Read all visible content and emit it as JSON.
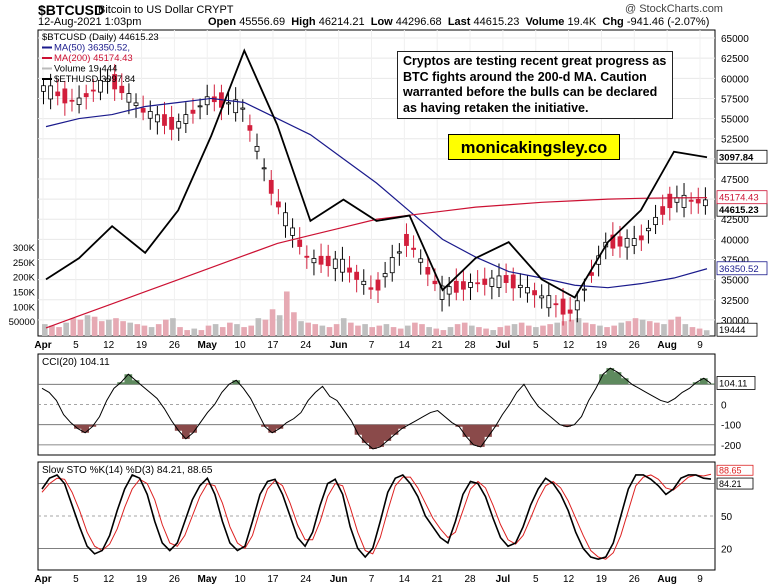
{
  "header": {
    "symbol": "$BTCUSD",
    "description": "Bitcoin to US Dollar  CRYPT",
    "copyright": "@ StockCharts.com",
    "date": "12-Aug-2021 1:03pm",
    "open_label": "Open",
    "open": "45556.69",
    "high_label": "High",
    "high": "46214.21",
    "low_label": "Low",
    "low": "44296.68",
    "last_label": "Last",
    "last": "44615.23",
    "volume_label": "Volume",
    "volume": "19.4K",
    "chg_label": "Chg",
    "chg": "-941.46 (-2.07%)"
  },
  "legend": {
    "main": "$BTCUSD (Daily) 44615.23",
    "ma50": "MA(50) 36350.52,",
    "ma200": "MA(200) 45174.43",
    "volume": "Volume 19,444",
    "eth": "$ETHUSD 3097.84"
  },
  "annotation": "Cryptos are testing recent great progress as BTC fights around the 200-d MA. Caution warranted before the bulls can be declared as having retaken the initiative.",
  "brand": "monicakingsley.co",
  "colors": {
    "up": "#000000",
    "down": "#d21f3c",
    "ma50": "#1a1a8c",
    "ma200": "#cc1133",
    "eth": "#000000",
    "vol_down": "#e6a9b3",
    "vol_up": "#bfbfbf",
    "cci_fill": "#8a4a4a",
    "cci_pos": "#5e8a5e",
    "sto_k": "#000000",
    "sto_d": "#dd2222"
  },
  "chart_data": [
    {
      "type": "line",
      "panel": "price",
      "x": [
        "Apr 1",
        "Apr 5",
        "Apr 12",
        "Apr 19",
        "Apr 26",
        "May 3",
        "May 10",
        "May 17",
        "May 24",
        "May 31",
        "Jun 7",
        "Jun 14",
        "Jun 21",
        "Jun 28",
        "Jul 5",
        "Jul 12",
        "Jul 19",
        "Jul 26",
        "Aug 2",
        "Aug 9",
        "Aug 12"
      ],
      "x_labels": [
        "Apr",
        "5",
        "12",
        "19",
        "26",
        "May",
        "10",
        "17",
        "24",
        "Jun",
        "7",
        "14",
        "21",
        "28",
        "Jul",
        "5",
        "12",
        "19",
        "26",
        "Aug",
        "9"
      ],
      "y_ticks": [
        30000,
        32500,
        35000,
        37500,
        40000,
        42500,
        45000,
        47500,
        50000,
        52500,
        55000,
        57500,
        60000,
        62500,
        65000
      ],
      "y_range": [
        28000,
        66000
      ],
      "series": [
        {
          "name": "$BTCUSD",
          "values": [
            58800,
            57000,
            60000,
            56000,
            54000,
            57500,
            56500,
            45000,
            37500,
            37000,
            33500,
            40000,
            33500,
            34500,
            35000,
            33000,
            30800,
            39500,
            39800,
            45000,
            44615
          ]
        },
        {
          "name": "MA(50)",
          "values": [
            54000,
            55000,
            55500,
            56500,
            57000,
            57500,
            57000,
            55000,
            53000,
            50000,
            47000,
            43500,
            40000,
            37800,
            36000,
            35200,
            34300,
            34000,
            34500,
            35200,
            36350
          ]
        },
        {
          "name": "MA(200)",
          "values": [
            29000,
            30500,
            32000,
            33500,
            35000,
            36500,
            38000,
            39500,
            40500,
            41500,
            42500,
            43000,
            43500,
            44000,
            44300,
            44600,
            44800,
            45000,
            45100,
            45150,
            45174
          ]
        }
      ],
      "markers": [
        {
          "label": "44615.23"
        },
        {
          "label": "45174.43"
        },
        {
          "label": "36350.52"
        },
        {
          "label": "3097.84"
        }
      ]
    },
    {
      "type": "line",
      "panel": "eth_overlay",
      "series": [
        {
          "name": "$ETHUSD",
          "values": [
            1950,
            2150,
            2450,
            2200,
            2600,
            3300,
            4100,
            3400,
            2500,
            2700,
            2500,
            2550,
            1850,
            2150,
            2300,
            1950,
            1780,
            2300,
            2600,
            3150,
            3097.84
          ]
        }
      ]
    },
    {
      "type": "bar",
      "panel": "volume",
      "y_ticks": [
        50000,
        100000,
        150000,
        200000,
        250000,
        300000
      ],
      "y_range": [
        0,
        320000
      ],
      "values": [
        40000,
        35000,
        30000,
        45000,
        60000,
        55000,
        70000,
        65000,
        50000,
        55000,
        60000,
        50000,
        45000,
        40000,
        35000,
        30000,
        40000,
        55000,
        60000,
        30000,
        20000,
        25000,
        20000,
        35000,
        40000,
        30000,
        45000,
        40000,
        30000,
        35000,
        60000,
        55000,
        90000,
        70000,
        150000,
        80000,
        50000,
        45000,
        40000,
        35000,
        30000,
        40000,
        60000,
        45000,
        35000,
        40000,
        30000,
        35000,
        40000,
        30000,
        25000,
        35000,
        45000,
        40000,
        30000,
        25000,
        20000,
        30000,
        40000,
        45000,
        35000,
        30000,
        25000,
        20000,
        30000,
        35000,
        40000,
        45000,
        35000,
        30000,
        35000,
        40000,
        45000,
        50000,
        55000,
        60000,
        45000,
        40000,
        35000,
        30000,
        35000,
        45000,
        50000,
        60000,
        55000,
        50000,
        45000,
        40000,
        55000,
        65000,
        40000,
        30000,
        25000,
        19444
      ],
      "last": "19444"
    },
    {
      "type": "line",
      "panel": "cci",
      "title": "CCI(20) 104.11",
      "y_ticks": [
        100,
        0,
        -100,
        -200
      ],
      "y_range": [
        -250,
        250
      ],
      "last": "104.11",
      "values": [
        80,
        60,
        20,
        -50,
        -90,
        -120,
        -140,
        -110,
        -60,
        20,
        80,
        110,
        150,
        120,
        90,
        60,
        30,
        -20,
        -80,
        -130,
        -170,
        -140,
        -90,
        -40,
        0,
        60,
        100,
        120,
        80,
        30,
        -40,
        -110,
        -140,
        -120,
        -90,
        -70,
        -40,
        20,
        60,
        90,
        40,
        20,
        -30,
        -80,
        -150,
        -190,
        -220,
        -210,
        -180,
        -150,
        -120,
        -100,
        -80,
        -60,
        -40,
        -30,
        -60,
        -90,
        -110,
        -160,
        -200,
        -210,
        -160,
        -110,
        -50,
        0,
        60,
        100,
        40,
        -10,
        -40,
        -70,
        -100,
        -110,
        -100,
        -60,
        20,
        80,
        150,
        180,
        160,
        130,
        100,
        80,
        60,
        40,
        20,
        10,
        30,
        60,
        80,
        110,
        130,
        104.11
      ],
      "positive_fill_indices": [
        6,
        7,
        8,
        9,
        10,
        11
      ],
      "negative_fill_indices": [
        46,
        47,
        48,
        49
      ]
    },
    {
      "type": "line",
      "panel": "sto",
      "title": "Slow STO %K(14) %D(3) 84.21, 88.65",
      "y_ticks": [
        20,
        50,
        80
      ],
      "y_range": [
        0,
        100
      ],
      "last_k": "84.21",
      "last_d": "88.65",
      "series": [
        {
          "name": "%K(14)",
          "values": [
            75,
            85,
            88,
            80,
            60,
            40,
            22,
            15,
            18,
            32,
            55,
            75,
            88,
            85,
            70,
            45,
            25,
            18,
            25,
            45,
            65,
            78,
            85,
            70,
            45,
            25,
            18,
            22,
            45,
            70,
            82,
            84,
            70,
            50,
            30,
            22,
            35,
            60,
            80,
            84,
            70,
            40,
            20,
            12,
            20,
            45,
            72,
            85,
            88,
            80,
            68,
            50,
            40,
            30,
            25,
            45,
            70,
            82,
            80,
            68,
            48,
            30,
            22,
            25,
            40,
            60,
            75,
            85,
            80,
            70,
            55,
            35,
            20,
            12,
            10,
            12,
            25,
            50,
            75,
            88,
            88,
            84,
            78,
            70,
            75,
            85,
            88,
            88,
            85,
            84.21
          ]
        },
        {
          "name": "%D(3)",
          "values": [
            72,
            80,
            85,
            84,
            72,
            55,
            35,
            22,
            18,
            24,
            38,
            58,
            75,
            84,
            80,
            65,
            42,
            25,
            22,
            32,
            50,
            68,
            80,
            78,
            62,
            40,
            25,
            20,
            32,
            55,
            75,
            83,
            78,
            62,
            42,
            28,
            28,
            45,
            68,
            80,
            78,
            58,
            35,
            18,
            15,
            30,
            55,
            78,
            86,
            86,
            76,
            62,
            48,
            38,
            30,
            35,
            55,
            75,
            82,
            76,
            60,
            42,
            28,
            24,
            32,
            48,
            65,
            78,
            82,
            76,
            64,
            48,
            32,
            18,
            12,
            10,
            16,
            32,
            55,
            78,
            86,
            88,
            84,
            76,
            74,
            80,
            86,
            88,
            87,
            88.65
          ]
        }
      ]
    }
  ]
}
